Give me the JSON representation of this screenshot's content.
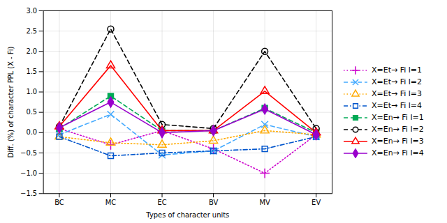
{
  "chart_data": {
    "type": "line",
    "xlabel": "Types of character units",
    "ylabel": "Diff. (%) of character PPL (X - Fi)",
    "categories": [
      "BC",
      "MC",
      "EC",
      "BV",
      "MV",
      "EV"
    ],
    "series": [
      {
        "name": "X=Et→ Fi l=1",
        "color": "#cc00cc",
        "line_style": "dotted",
        "marker": "plus",
        "values": [
          0.1,
          -0.3,
          0.05,
          -0.4,
          -1.0,
          -0.05
        ]
      },
      {
        "name": "X=Et→ Fi l=2",
        "color": "#44aaff",
        "line_style": "dashed",
        "marker": "times",
        "values": [
          -0.05,
          0.45,
          -0.55,
          -0.45,
          0.2,
          -0.1
        ]
      },
      {
        "name": "X=Et→ Fi l=3",
        "color": "#ffaa00",
        "line_style": "dotted",
        "marker": "triangle-open",
        "values": [
          -0.1,
          -0.25,
          -0.3,
          -0.2,
          0.05,
          -0.05
        ]
      },
      {
        "name": "X=Et→ Fi l=4",
        "color": "#0055cc",
        "line_style": "dashdot",
        "marker": "square-open",
        "values": [
          -0.1,
          -0.57,
          -0.5,
          -0.45,
          -0.4,
          -0.1
        ]
      },
      {
        "name": "X=En→ Fi l=1",
        "color": "#00aa55",
        "line_style": "dashed",
        "marker": "square",
        "values": [
          0.1,
          0.9,
          0.05,
          0.05,
          0.6,
          0.0
        ]
      },
      {
        "name": "X=En→ Fi l=2",
        "color": "#000000",
        "line_style": "dashed",
        "marker": "circle-open",
        "values": [
          0.15,
          2.55,
          0.2,
          0.1,
          2.0,
          0.1
        ]
      },
      {
        "name": "X=En→ Fi l=3",
        "color": "#ff0000",
        "line_style": "solid",
        "marker": "triangle-open",
        "values": [
          0.15,
          1.65,
          0.05,
          0.05,
          1.02,
          0.0
        ]
      },
      {
        "name": "X=En→ Fi l=4",
        "color": "#9900cc",
        "line_style": "solid",
        "marker": "diamond",
        "values": [
          0.12,
          0.75,
          0.0,
          0.05,
          0.58,
          -0.05
        ]
      }
    ],
    "ylim": [
      -1.5,
      3.0
    ],
    "yticks": [
      {
        "value": -1.5,
        "label": "−1.5"
      },
      {
        "value": -1.0,
        "label": "−1.0"
      },
      {
        "value": -0.5,
        "label": "−0.5"
      },
      {
        "value": 0.0,
        "label": "0.0"
      },
      {
        "value": 0.5,
        "label": "0.5"
      },
      {
        "value": 1.0,
        "label": "1.0"
      },
      {
        "value": 1.5,
        "label": "1.5"
      },
      {
        "value": 2.0,
        "label": "2.0"
      },
      {
        "value": 2.5,
        "label": "2.5"
      },
      {
        "value": 3.0,
        "label": "3.0"
      }
    ],
    "grid": true,
    "legend": "right"
  }
}
